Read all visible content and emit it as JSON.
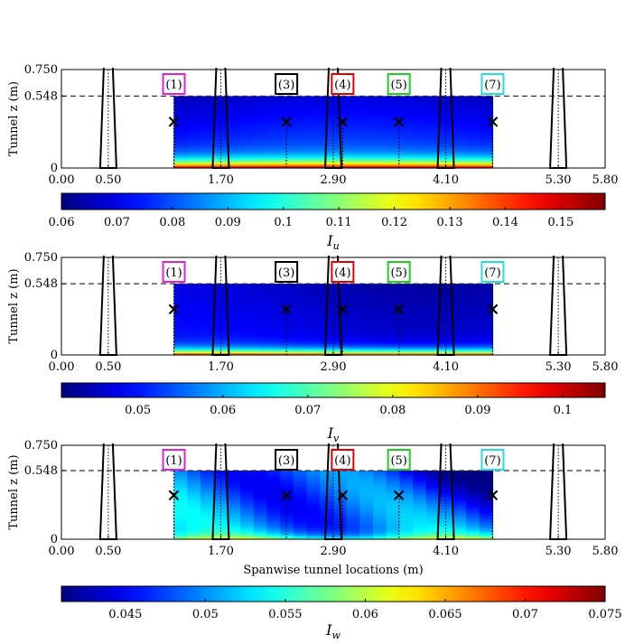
{
  "chart_data": [
    {
      "type": "heatmap",
      "ylabel": "Tunnel z (m)",
      "xlabel": "",
      "xlim": [
        0,
        5.8
      ],
      "ylim": [
        0,
        0.75
      ],
      "x_ticks": [
        "0.00",
        "0.50",
        "1.70",
        "2.90",
        "4.10",
        "5.30",
        "5.80"
      ],
      "y_ticks": [
        "0",
        "0.548",
        "0.750"
      ],
      "dashed_line_z": 0.548,
      "contour_x_range": [
        1.2,
        4.6
      ],
      "contour_z_range": [
        0,
        0.548
      ],
      "colorbar": {
        "label": "I_u",
        "min": 0.06,
        "max": 0.158,
        "colormap": "jet",
        "ticks": [
          "0.06",
          "0.07",
          "0.08",
          "0.09",
          "0.1",
          "0.11",
          "0.12",
          "0.13",
          "0.14",
          "0.15"
        ]
      },
      "field": {
        "base": 0.08,
        "floor_peak": 0.158,
        "floor_decay": 0.12,
        "profile": "u"
      }
    },
    {
      "type": "heatmap",
      "ylabel": "Tunnel z (m)",
      "xlabel": "",
      "xlim": [
        0,
        5.8
      ],
      "ylim": [
        0,
        0.75
      ],
      "x_ticks": [
        "0.00",
        "0.50",
        "1.70",
        "2.90",
        "4.10",
        "5.30",
        "5.80"
      ],
      "y_ticks": [
        "0",
        "0.548",
        "0.750"
      ],
      "dashed_line_z": 0.548,
      "contour_x_range": [
        1.2,
        4.6
      ],
      "contour_z_range": [
        0,
        0.548
      ],
      "colorbar": {
        "label": "I_v",
        "min": 0.041,
        "max": 0.105,
        "colormap": "jet",
        "ticks": [
          "0.05",
          "0.06",
          "0.07",
          "0.08",
          "0.09",
          "0.1"
        ]
      },
      "field": {
        "base": 0.049,
        "floor_peak": 0.1,
        "floor_decay": 0.08,
        "profile": "v"
      }
    },
    {
      "type": "heatmap",
      "ylabel": "Tunnel z (m)",
      "xlabel": "Spanwise tunnel locations (m)",
      "xlim": [
        0,
        5.8
      ],
      "ylim": [
        0,
        0.75
      ],
      "x_ticks": [
        "0.00",
        "0.50",
        "1.70",
        "2.90",
        "4.10",
        "5.30",
        "5.80"
      ],
      "y_ticks": [
        "0",
        "0.548",
        "0.750"
      ],
      "dashed_line_z": 0.548,
      "contour_x_range": [
        1.2,
        4.6
      ],
      "contour_z_range": [
        0,
        0.548
      ],
      "colorbar": {
        "label": "I_w",
        "min": 0.041,
        "max": 0.075,
        "colormap": "jet",
        "ticks": [
          "0.045",
          "0.05",
          "0.055",
          "0.06",
          "0.065",
          "0.07",
          "0.075"
        ]
      },
      "field": {
        "base": 0.05,
        "floor_peak": 0.06,
        "floor_decay": 0.06,
        "profile": "w"
      }
    }
  ],
  "markers": {
    "x_positions": [
      1.2,
      2.4,
      3.0,
      3.6,
      4.6
    ],
    "z": 0.35,
    "symbol": "×"
  },
  "probe_labels": [
    {
      "label": "(1)",
      "x": 1.2,
      "color": "#e020e0"
    },
    {
      "label": "(3)",
      "x": 2.4,
      "color": "#000000"
    },
    {
      "label": "(4)",
      "x": 3.0,
      "color": "#e00000"
    },
    {
      "label": "(5)",
      "x": 3.6,
      "color": "#20d020"
    },
    {
      "label": "(7)",
      "x": 4.6,
      "color": "#20e0e0"
    }
  ],
  "structures": {
    "centers_x": [
      0.5,
      1.7,
      2.9,
      4.1,
      5.3
    ],
    "style": "tapered outline with dotted centerline"
  }
}
